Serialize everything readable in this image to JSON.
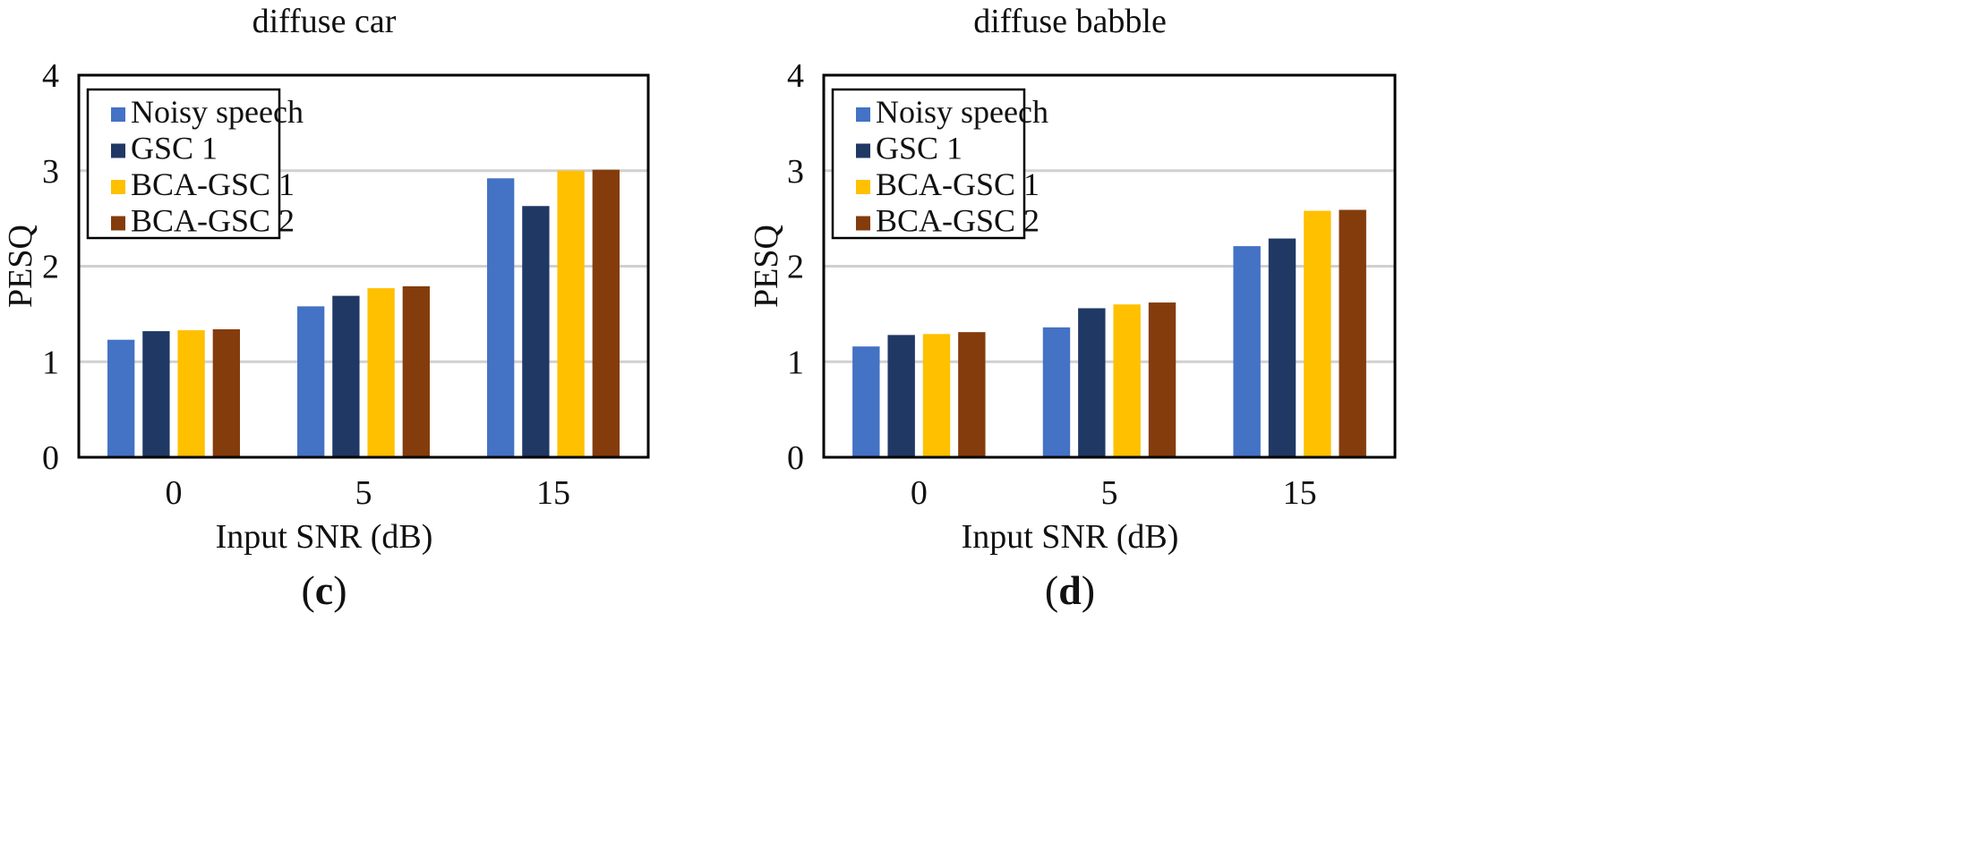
{
  "colors": {
    "Noisy speech": "#4472C4",
    "GSC 1": "#203864",
    "BCA-GSC 1": "#FFC000",
    "BCA-GSC 2": "#843C0C",
    "grid": "#d0d0d0",
    "frame": "#000000"
  },
  "chart_data": [
    {
      "type": "bar",
      "title": "diffuse car",
      "xlabel": "Input SNR (dB)",
      "ylabel": "PESQ",
      "panel_label": {
        "open": "(",
        "letter": "c",
        "close": ")"
      },
      "categories": [
        "0",
        "5",
        "15"
      ],
      "ylim": [
        0,
        4
      ],
      "yticks": [
        "0",
        "1",
        "2",
        "3",
        "4"
      ],
      "grid": true,
      "legend_position": "top-left",
      "series": [
        {
          "name": "Noisy speech",
          "values": [
            1.23,
            1.58,
            2.92
          ]
        },
        {
          "name": "GSC 1",
          "values": [
            1.32,
            1.69,
            2.63
          ]
        },
        {
          "name": "BCA-GSC 1",
          "values": [
            1.33,
            1.77,
            3.0
          ]
        },
        {
          "name": "BCA-GSC 2",
          "values": [
            1.34,
            1.79,
            3.01
          ]
        }
      ]
    },
    {
      "type": "bar",
      "title": "diffuse babble",
      "xlabel": "Input SNR (dB)",
      "ylabel": "PESQ",
      "panel_label": {
        "open": "(",
        "letter": "d",
        "close": ")"
      },
      "categories": [
        "0",
        "5",
        "15"
      ],
      "ylim": [
        0,
        4
      ],
      "yticks": [
        "0",
        "1",
        "2",
        "3",
        "4"
      ],
      "grid": true,
      "legend_position": "top-left",
      "series": [
        {
          "name": "Noisy speech",
          "values": [
            1.16,
            1.36,
            2.21
          ]
        },
        {
          "name": "GSC 1",
          "values": [
            1.28,
            1.56,
            2.29
          ]
        },
        {
          "name": "BCA-GSC 1",
          "values": [
            1.29,
            1.6,
            2.58
          ]
        },
        {
          "name": "BCA-GSC 2",
          "values": [
            1.31,
            1.62,
            2.59
          ]
        }
      ]
    }
  ]
}
